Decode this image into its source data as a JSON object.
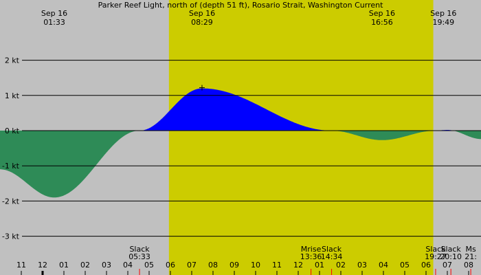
{
  "chart_data": {
    "type": "area",
    "title": "Parker Reef Light, north of (depth 51 ft), Rosario Strait, Washington Current",
    "top_events": [
      {
        "date": "Sep 16",
        "time": "01:33",
        "hour": 1.55
      },
      {
        "date": "Sep 16",
        "time": "08:29",
        "hour": 8.483
      },
      {
        "date": "Sep 16",
        "time": "16:56",
        "hour": 16.933
      },
      {
        "date": "Sep 16",
        "time": "19:49",
        "hour": 19.817
      }
    ],
    "bottom_events": [
      {
        "lines": [
          "Slack",
          "05:33"
        ],
        "hour": 5.55
      },
      {
        "lines": [
          "Mrise",
          "13:36"
        ],
        "hour": 13.6
      },
      {
        "lines": [
          "Slack",
          "14:34"
        ],
        "hour": 14.567
      },
      {
        "lines": [
          "Slack",
          "19:27"
        ],
        "hour": 19.45
      },
      {
        "lines": [
          "Slack",
          "20:10"
        ],
        "hour": 20.167
      },
      {
        "lines": [
          "Ms",
          "21:"
        ],
        "hour": 21.1
      }
    ],
    "hour_tick_labels": [
      "11",
      "12",
      "01",
      "02",
      "03",
      "04",
      "05",
      "06",
      "07",
      "08",
      "09",
      "10",
      "11",
      "12",
      "01",
      "02",
      "03",
      "04",
      "05",
      "06",
      "07",
      "08",
      "09"
    ],
    "x_range_hours": [
      -1.0,
      21.6
    ],
    "y_ticks": [
      {
        "label": "2 kt",
        "value": 2
      },
      {
        "label": "1 kt",
        "value": 1
      },
      {
        "label": "0 kt",
        "value": 0
      },
      {
        "label": "-1 kt",
        "value": -1
      },
      {
        "label": "-2 kt",
        "value": -2
      },
      {
        "label": "-3 kt",
        "value": -3
      }
    ],
    "y_range": [
      -3.0,
      2.0
    ],
    "daylight_hours": [
      6.93,
      19.34
    ],
    "series": [
      {
        "x": [
          -1.0,
          1.55,
          5.55,
          8.483,
          14.567,
          16.933,
          19.45,
          20.0,
          21.6
        ],
        "y": [
          -1.1,
          -1.9,
          0.0,
          1.2,
          0.0,
          -0.27,
          0.0,
          0.02,
          -0.24
        ]
      }
    ],
    "colors": {
      "background": "#c0c0c0",
      "daylight": "#cccc00",
      "flood_fill": "#0000ff",
      "ebb_fill": "#2e8b57",
      "tick_red": "#ff0000"
    }
  }
}
